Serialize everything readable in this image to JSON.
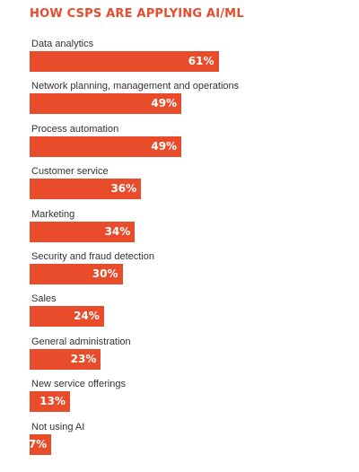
{
  "chart_data": {
    "type": "bar",
    "orientation": "horizontal",
    "title": "HOW CSPS ARE APPLYING AI/ML",
    "xlabel": "",
    "ylabel": "",
    "unit": "%",
    "xlim": [
      0,
      100
    ],
    "grid": false,
    "bar_color": "#e84c2b",
    "label_color": "#ffffff",
    "categories": [
      "Data analytics",
      "Network planning, management and operations",
      "Process automation",
      "Customer service",
      "Marketing",
      "Security and fraud detection",
      "Sales",
      "General administration",
      "New service offerings",
      "Not using AI"
    ],
    "values": [
      61,
      49,
      49,
      36,
      34,
      30,
      24,
      23,
      13,
      7
    ],
    "value_labels": [
      "61%",
      "49%",
      "49%",
      "36%",
      "34%",
      "30%",
      "24%",
      "23%",
      "13%",
      "7%"
    ]
  }
}
